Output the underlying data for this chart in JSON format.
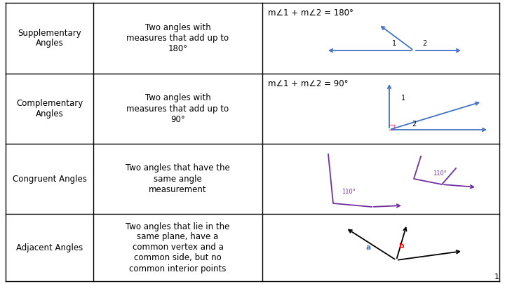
{
  "bg_color": "#ffffff",
  "border_color": "#000000",
  "blue_color": "#4472c4",
  "purple_color": "#7030a0",
  "red_color": "#ff0000",
  "rows": [
    {
      "col1": "Supplementary\nAngles",
      "col2": "Two angles with\nmeasures that add up to\n180°",
      "col3_formula": "m∠1 + m∠2 = 180°",
      "diagram": "supplementary"
    },
    {
      "col1": "Complementary\nAngles",
      "col2": "Two angles with\nmeasures that add up to\n90°",
      "col3_formula": "m∠1 + m∠2 = 90°",
      "diagram": "complementary"
    },
    {
      "col1": "Congruent Angles",
      "col2": "Two angles that have the\nsame angle\nmeasurement",
      "col3_formula": "",
      "diagram": "congruent"
    },
    {
      "col1": "Adjacent Angles",
      "col2": "Two angles that lie in the\nsame plane, have a\ncommon vertex and a\ncommon side, but no\ncommon interior points",
      "col3_formula": "",
      "diagram": "adjacent"
    }
  ]
}
